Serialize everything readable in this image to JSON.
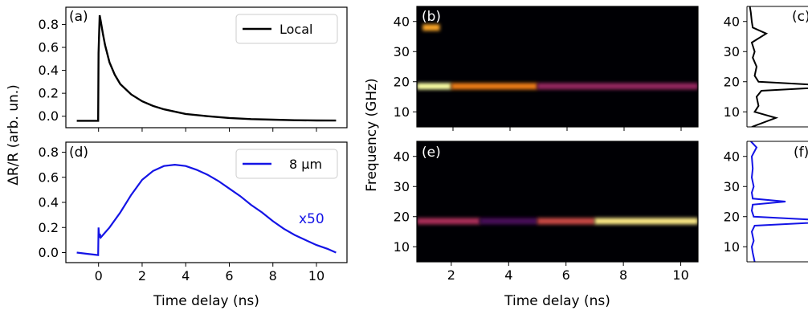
{
  "chart_data": [
    {
      "panel": "(a)",
      "type": "line",
      "xlim": [
        -1.5,
        11.4
      ],
      "ylim": [
        -0.1,
        0.95
      ],
      "yticks": [
        "0.0",
        "0.2",
        "0.4",
        "0.6",
        "0.8"
      ],
      "legend": {
        "label": "Local",
        "color": "#000000",
        "placement": "top-right"
      },
      "series": [
        {
          "name": "Local",
          "color": "#000000",
          "x": [
            -1.0,
            -0.5,
            -0.02,
            0.0,
            0.05,
            0.1,
            0.2,
            0.3,
            0.5,
            0.75,
            1.0,
            1.5,
            2.0,
            2.5,
            3.0,
            4.0,
            5.0,
            6.0,
            7.0,
            8.0,
            9.0,
            10.0,
            10.9
          ],
          "y": [
            -0.04,
            -0.04,
            -0.04,
            0.55,
            0.88,
            0.83,
            0.72,
            0.62,
            0.47,
            0.36,
            0.28,
            0.19,
            0.13,
            0.09,
            0.06,
            0.02,
            0.0,
            -0.015,
            -0.025,
            -0.03,
            -0.035,
            -0.037,
            -0.038
          ]
        }
      ]
    },
    {
      "panel": "(d)",
      "type": "line",
      "xlim": [
        -1.5,
        11.4
      ],
      "ylim": [
        -0.08,
        0.88
      ],
      "xticks": [
        "0",
        "2",
        "4",
        "6",
        "8",
        "10"
      ],
      "yticks": [
        "0.0",
        "0.2",
        "0.4",
        "0.6",
        "0.8"
      ],
      "xlabel": "Time delay (ns)",
      "legend": {
        "label": "8 µm",
        "color": "#1414e6",
        "placement": "top-right"
      },
      "annotation": {
        "text": "x50",
        "color": "#1414e6"
      },
      "series": [
        {
          "name": "8 µm",
          "color": "#1414e6",
          "x": [
            -1.0,
            -0.5,
            -0.02,
            0.0,
            0.03,
            0.06,
            0.1,
            0.5,
            1.0,
            1.5,
            2.0,
            2.5,
            3.0,
            3.5,
            4.0,
            4.5,
            5.0,
            5.5,
            6.0,
            6.5,
            7.0,
            7.5,
            8.0,
            8.5,
            9.0,
            9.5,
            10.0,
            10.5,
            10.9
          ],
          "y": [
            0.0,
            -0.01,
            -0.02,
            0.2,
            0.12,
            0.15,
            0.12,
            0.2,
            0.32,
            0.46,
            0.58,
            0.65,
            0.69,
            0.7,
            0.69,
            0.66,
            0.62,
            0.57,
            0.51,
            0.45,
            0.38,
            0.32,
            0.25,
            0.19,
            0.14,
            0.1,
            0.06,
            0.03,
            0.0
          ]
        }
      ]
    },
    {
      "panel": "(b)",
      "type": "heatmap",
      "ylabel": "Frequency (GHz)",
      "yticks": [
        "10",
        "20",
        "30",
        "40"
      ],
      "xlim": [
        0.8,
        10.6
      ],
      "ylim": [
        5,
        45
      ],
      "colormap": "inferno",
      "features": [
        {
          "x0": 0.8,
          "x1": 2.0,
          "freq": 18.5,
          "intensity": 1.0
        },
        {
          "x0": 2.0,
          "x1": 5.0,
          "freq": 18.5,
          "intensity": 0.7
        },
        {
          "x0": 5.0,
          "x1": 10.6,
          "freq": 18.5,
          "intensity": 0.4
        },
        {
          "x0": 1.0,
          "x1": 1.6,
          "freq": 38,
          "intensity": 0.8
        }
      ]
    },
    {
      "panel": "(e)",
      "type": "heatmap",
      "xlabel": "Time delay (ns)",
      "xticks": [
        "2",
        "4",
        "6",
        "8",
        "10"
      ],
      "yticks": [
        "10",
        "20",
        "30",
        "40"
      ],
      "xlim": [
        0.8,
        10.6
      ],
      "ylim": [
        5,
        45
      ],
      "colormap": "inferno",
      "features": [
        {
          "x0": 0.8,
          "x1": 3.0,
          "freq": 18.5,
          "intensity": 0.45
        },
        {
          "x0": 3.0,
          "x1": 5.0,
          "freq": 18.5,
          "intensity": 0.2
        },
        {
          "x0": 5.0,
          "x1": 7.0,
          "freq": 18.5,
          "intensity": 0.55
        },
        {
          "x0": 7.0,
          "x1": 10.6,
          "freq": 18.5,
          "intensity": 0.95
        }
      ]
    },
    {
      "panel": "(c)",
      "type": "line",
      "yticks": [
        "10",
        "20",
        "30",
        "40"
      ],
      "ylim": [
        5,
        45
      ],
      "series": [
        {
          "color": "#000000",
          "freq": [
            5,
            8,
            10,
            12,
            15,
            17,
            18.5,
            20,
            22,
            25,
            28,
            30,
            33,
            36,
            38,
            40,
            43,
            45
          ],
          "amp": [
            0.05,
            0.3,
            0.08,
            0.12,
            0.1,
            0.15,
            1.0,
            0.12,
            0.08,
            0.1,
            0.06,
            0.08,
            0.05,
            0.2,
            0.06,
            0.05,
            0.04,
            0.03
          ]
        }
      ]
    },
    {
      "panel": "(f)",
      "type": "line",
      "yticks": [
        "10",
        "20",
        "30",
        "40"
      ],
      "ylim": [
        5,
        45
      ],
      "series": [
        {
          "color": "#1414e6",
          "freq": [
            5,
            8,
            10,
            12,
            15,
            17,
            18.5,
            20,
            22,
            24,
            25,
            26,
            28,
            30,
            33,
            36,
            40,
            43,
            45
          ],
          "amp": [
            0.08,
            0.06,
            0.05,
            0.07,
            0.05,
            0.08,
            1.0,
            0.07,
            0.05,
            0.06,
            0.4,
            0.06,
            0.05,
            0.07,
            0.05,
            0.06,
            0.05,
            0.1,
            0.04
          ]
        }
      ]
    }
  ],
  "shared": {
    "left_ylabel": "ΔR/R (arb. un.)"
  }
}
